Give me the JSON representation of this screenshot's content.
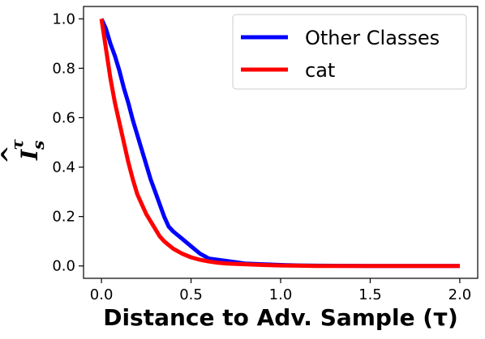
{
  "chart_data": {
    "type": "line",
    "title": "",
    "xlabel": "Distance to Adv. Sample (τ)",
    "ylabel": {
      "base": "I",
      "superscript": "τ",
      "subscript": "s",
      "hat": "^"
    },
    "xlim": [
      -0.1,
      2.1
    ],
    "ylim": [
      -0.05,
      1.05
    ],
    "xticks": [
      0.0,
      0.5,
      1.0,
      1.5,
      2.0
    ],
    "xtick_labels": [
      "0.0",
      "0.5",
      "1.0",
      "1.5",
      "2.0"
    ],
    "yticks": [
      0.0,
      0.2,
      0.4,
      0.6,
      0.8,
      1.0
    ],
    "ytick_labels": [
      "0.0",
      "0.2",
      "0.4",
      "0.6",
      "0.8",
      "1.0"
    ],
    "grid": false,
    "legend_position": "top-right",
    "series": [
      {
        "name": "Other Classes",
        "color": "#0000ff",
        "x": [
          0.0,
          0.025,
          0.05,
          0.075,
          0.1,
          0.125,
          0.15,
          0.175,
          0.2,
          0.225,
          0.25,
          0.275,
          0.3,
          0.325,
          0.35,
          0.375,
          0.4,
          0.45,
          0.5,
          0.55,
          0.6,
          0.65,
          0.7,
          0.75,
          0.8,
          0.9,
          1.0,
          1.1,
          1.2,
          1.5,
          2.0
        ],
        "y": [
          1.0,
          0.96,
          0.9,
          0.85,
          0.79,
          0.72,
          0.66,
          0.59,
          0.53,
          0.47,
          0.41,
          0.35,
          0.3,
          0.25,
          0.2,
          0.16,
          0.14,
          0.11,
          0.08,
          0.05,
          0.03,
          0.025,
          0.02,
          0.015,
          0.01,
          0.007,
          0.004,
          0.002,
          0.001,
          0.0,
          0.0
        ]
      },
      {
        "name": "cat",
        "color": "#ff0000",
        "x": [
          0.0,
          0.025,
          0.05,
          0.075,
          0.1,
          0.125,
          0.15,
          0.175,
          0.2,
          0.225,
          0.25,
          0.275,
          0.3,
          0.325,
          0.35,
          0.375,
          0.4,
          0.45,
          0.5,
          0.55,
          0.6,
          0.65,
          0.7,
          0.8,
          0.9,
          1.0,
          1.1,
          1.2,
          1.5,
          2.0
        ],
        "y": [
          1.0,
          0.88,
          0.76,
          0.66,
          0.58,
          0.5,
          0.42,
          0.35,
          0.29,
          0.25,
          0.21,
          0.18,
          0.15,
          0.12,
          0.1,
          0.085,
          0.07,
          0.05,
          0.035,
          0.025,
          0.018,
          0.013,
          0.01,
          0.007,
          0.004,
          0.002,
          0.001,
          0.0,
          0.0,
          0.0
        ]
      }
    ]
  }
}
